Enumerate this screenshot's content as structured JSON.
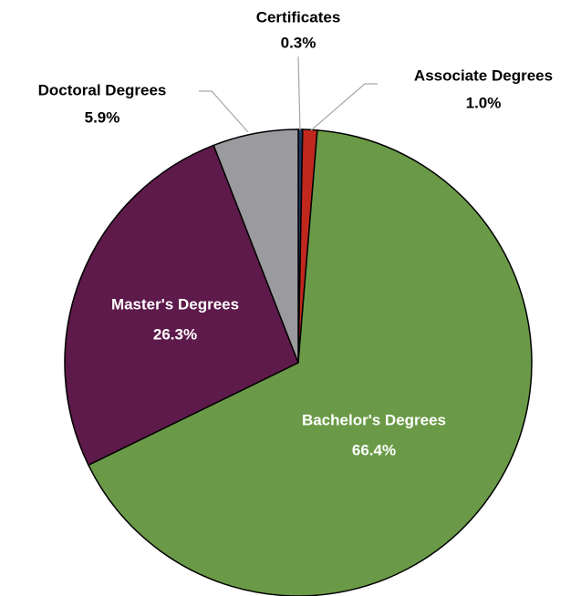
{
  "chart_data": {
    "type": "pie",
    "categories": [
      "Certificates",
      "Associate Degrees",
      "Bachelor's Degrees",
      "Master's Degrees",
      "Doctoral Degrees"
    ],
    "values": [
      0.3,
      1.0,
      66.4,
      26.3,
      5.9
    ],
    "value_labels": [
      "0.3%",
      "1.0%",
      "66.4%",
      "26.3%",
      "5.9%"
    ],
    "colors": [
      "#1f3864",
      "#c0281e",
      "#6a9a47",
      "#5e1a4a",
      "#9b9b9f"
    ]
  }
}
